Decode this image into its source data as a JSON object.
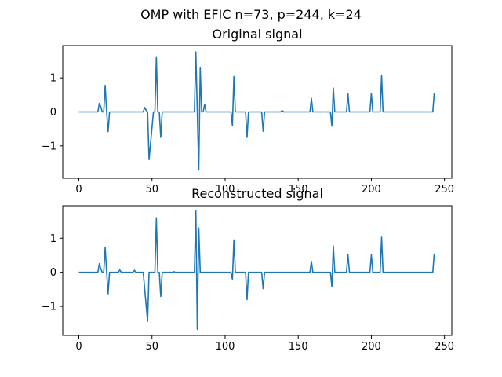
{
  "suptitle": "OMP with EFIC n=73, p=244, k=24",
  "chart_data": [
    {
      "type": "line",
      "title": "Original signal",
      "xlabel": "",
      "ylabel": "",
      "xlim": [
        -11,
        255
      ],
      "ylim": [
        -1.95,
        1.95
      ],
      "xticks": [
        0,
        50,
        100,
        150,
        200,
        250
      ],
      "yticks": [
        -1,
        0,
        1
      ],
      "grid": false,
      "color": "#1f77b4",
      "x": [
        0,
        13,
        14,
        15,
        16,
        17,
        18,
        19,
        20,
        21,
        44,
        45,
        46,
        47,
        48,
        51,
        52,
        53,
        54,
        55,
        56,
        57,
        79,
        80,
        81,
        82,
        83,
        84,
        85,
        86,
        87,
        104,
        105,
        106,
        107,
        114,
        115,
        116,
        117,
        125,
        126,
        127,
        128,
        138,
        139,
        140,
        158,
        159,
        160,
        161,
        172,
        173,
        174,
        175,
        183,
        184,
        185,
        199,
        200,
        201,
        205,
        206,
        207,
        208,
        242,
        243
      ],
      "y": [
        0,
        0,
        0.25,
        0.15,
        0,
        0,
        0.78,
        0,
        -0.58,
        0,
        0,
        0.13,
        0.05,
        0,
        -1.4,
        0,
        0,
        1.62,
        0,
        0,
        -0.75,
        0,
        0,
        1.76,
        0,
        -1.7,
        1.31,
        0,
        0,
        0.22,
        0,
        0,
        -0.4,
        1.04,
        0,
        0,
        -0.75,
        0,
        0,
        0,
        -0.57,
        0,
        0,
        0,
        0.04,
        0,
        0,
        0.4,
        0,
        0,
        0,
        -0.42,
        0.7,
        0,
        0,
        0.54,
        0,
        0,
        0.55,
        0,
        0,
        0,
        1.07,
        0,
        0,
        0.56
      ]
    },
    {
      "type": "line",
      "title": "Reconstructed signal",
      "xlabel": "",
      "ylabel": "",
      "xlim": [
        -11,
        255
      ],
      "ylim": [
        -1.85,
        1.95
      ],
      "xticks": [
        0,
        50,
        100,
        150,
        200,
        250
      ],
      "yticks": [
        -1,
        0,
        1
      ],
      "grid": false,
      "color": "#1f77b4",
      "x": [
        0,
        13,
        14,
        15,
        16,
        17,
        18,
        19,
        20,
        21,
        27,
        28,
        29,
        37,
        38,
        39,
        44,
        47,
        48,
        51,
        52,
        53,
        54,
        55,
        56,
        57,
        64,
        65,
        66,
        79,
        80,
        81,
        82,
        83,
        84,
        104,
        105,
        106,
        107,
        114,
        115,
        116,
        117,
        125,
        126,
        127,
        128,
        158,
        159,
        160,
        161,
        172,
        173,
        174,
        175,
        183,
        184,
        185,
        199,
        200,
        201,
        205,
        206,
        207,
        208,
        242,
        243
      ],
      "y": [
        0,
        0,
        0.25,
        0.1,
        0,
        0,
        0.73,
        0,
        -0.63,
        0,
        0,
        0.07,
        0,
        0,
        0.06,
        0,
        0,
        -1.44,
        0,
        0,
        0,
        1.6,
        0,
        0,
        -0.71,
        0,
        0,
        0.02,
        0,
        0,
        1.8,
        -1.67,
        1.3,
        0,
        0,
        0,
        -0.2,
        0.95,
        0,
        0,
        -0.8,
        0,
        0,
        0,
        -0.48,
        0,
        0,
        0,
        0.32,
        0,
        0,
        0,
        -0.42,
        0.77,
        0,
        0,
        0.53,
        0,
        0,
        0.51,
        0,
        0,
        0,
        1.03,
        0,
        0,
        0.55
      ]
    }
  ]
}
